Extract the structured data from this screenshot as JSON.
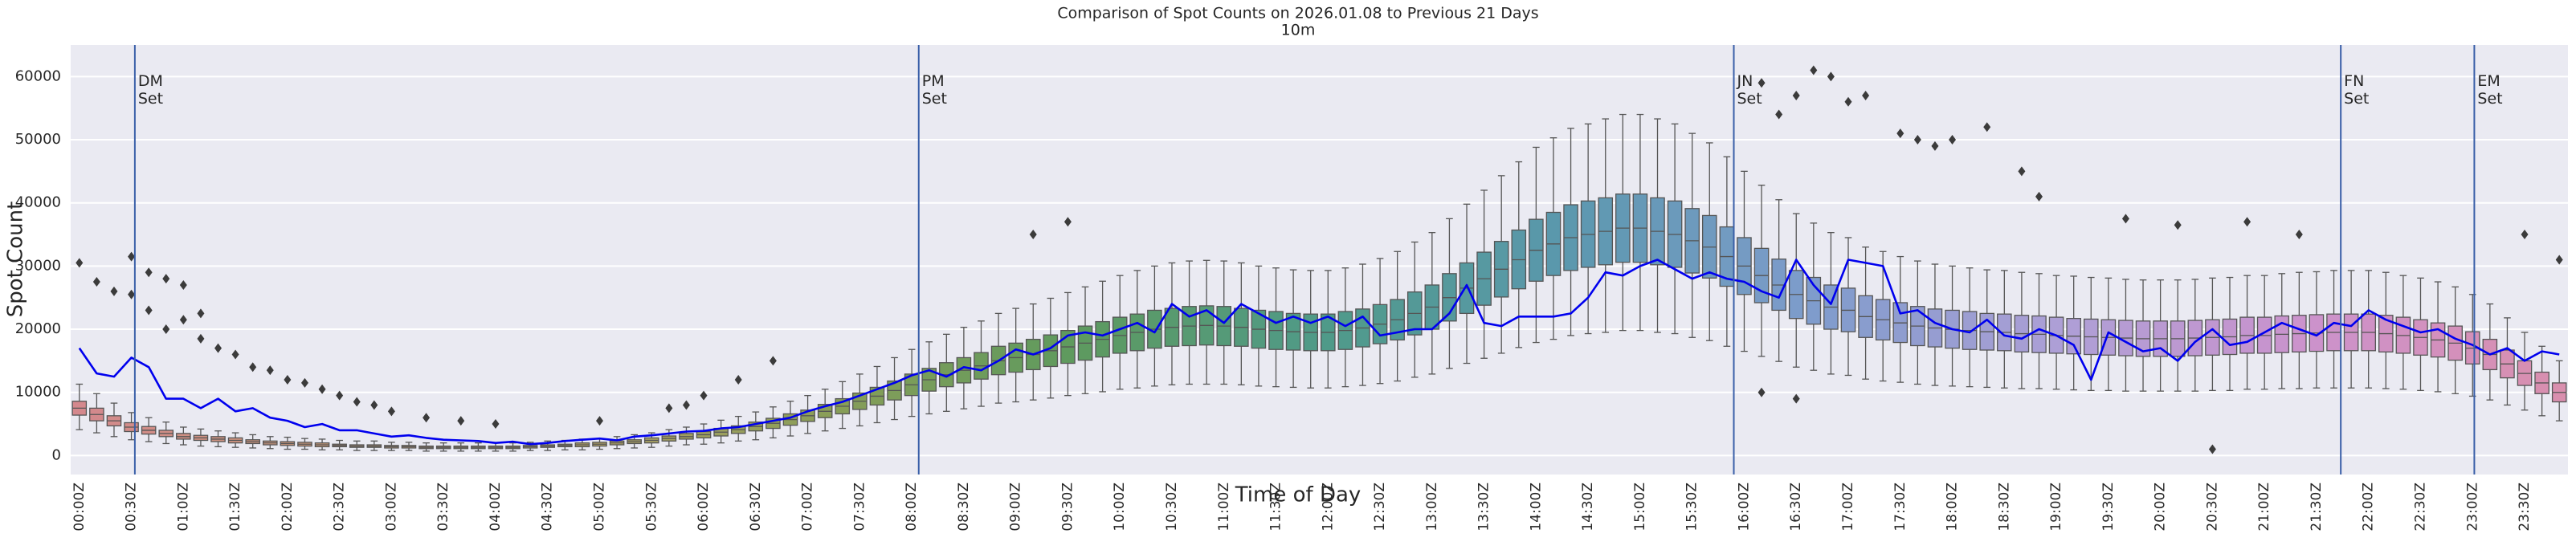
{
  "chart_data": {
    "type": "box",
    "title": "Comparison of Spot Counts on 2026.01.08 to Previous 21 Days",
    "subtitle": "10m",
    "x_label": "Time of Day",
    "y_label": "Spot Count",
    "categories": [
      "00:00Z",
      null,
      null,
      "00:30Z",
      null,
      null,
      "01:00Z",
      null,
      null,
      "01:30Z",
      null,
      null,
      "02:00Z",
      null,
      null,
      "02:30Z",
      null,
      null,
      "03:00Z",
      null,
      null,
      "03:30Z",
      null,
      null,
      "04:00Z",
      null,
      null,
      "04:30Z",
      null,
      null,
      "05:00Z",
      null,
      null,
      "05:30Z",
      null,
      null,
      "06:00Z",
      null,
      null,
      "06:30Z",
      null,
      null,
      "07:00Z",
      null,
      null,
      "07:30Z",
      null,
      null,
      "08:00Z",
      null,
      null,
      "08:30Z",
      null,
      null,
      "09:00Z",
      null,
      null,
      "09:30Z",
      null,
      null,
      "10:00Z",
      null,
      null,
      "10:30Z",
      null,
      null,
      "11:00Z",
      null,
      null,
      "11:30Z",
      null,
      null,
      "12:00Z",
      null,
      null,
      "12:30Z",
      null,
      null,
      "13:00Z",
      null,
      null,
      "13:30Z",
      null,
      null,
      "14:00Z",
      null,
      null,
      "14:30Z",
      null,
      null,
      "15:00Z",
      null,
      null,
      "15:30Z",
      null,
      null,
      "16:00Z",
      null,
      null,
      "16:30Z",
      null,
      null,
      "17:00Z",
      null,
      null,
      "17:30Z",
      null,
      null,
      "18:00Z",
      null,
      null,
      "18:30Z",
      null,
      null,
      "19:00Z",
      null,
      null,
      "19:30Z",
      null,
      null,
      "20:00Z",
      null,
      null,
      "20:30Z",
      null,
      null,
      "21:00Z",
      null,
      null,
      "21:30Z",
      null,
      null,
      "22:00Z",
      null,
      null,
      "22:30Z",
      null,
      null,
      "23:00Z",
      null,
      null,
      "23:30Z",
      null,
      null
    ],
    "boxes": {
      "whislo": [
        4100,
        3600,
        3000,
        2500,
        2200,
        1900,
        1700,
        1500,
        1400,
        1300,
        1200,
        1100,
        1000,
        1000,
        900,
        900,
        800,
        800,
        800,
        800,
        700,
        700,
        700,
        700,
        700,
        700,
        800,
        800,
        900,
        900,
        1000,
        1100,
        1200,
        1300,
        1500,
        1700,
        1800,
        2000,
        2300,
        2500,
        2800,
        3100,
        3500,
        3900,
        4300,
        4700,
        5200,
        5700,
        6200,
        6600,
        7000,
        7400,
        7800,
        8300,
        8500,
        8800,
        9100,
        9500,
        9800,
        10100,
        10500,
        10700,
        11000,
        11200,
        11300,
        11300,
        11300,
        11200,
        11000,
        10900,
        10800,
        10700,
        10700,
        10900,
        11100,
        11400,
        11800,
        12400,
        12900,
        13800,
        14600,
        15400,
        16200,
        17100,
        17900,
        18400,
        19000,
        19300,
        19500,
        19800,
        19800,
        19500,
        19300,
        18700,
        18200,
        17300,
        16500,
        15700,
        14900,
        14000,
        13500,
        12900,
        12700,
        12100,
        11800,
        11600,
        11300,
        11100,
        11000,
        10900,
        10800,
        10700,
        10600,
        10600,
        10500,
        10400,
        10300,
        10300,
        10200,
        10200,
        10200,
        10200,
        10200,
        10300,
        10300,
        10500,
        10500,
        10600,
        10600,
        10700,
        10700,
        10700,
        10700,
        10600,
        10500,
        10300,
        10100,
        9800,
        9400,
        8800,
        8000,
        7200,
        6300,
        5500
      ],
      "q1": [
        6400,
        5500,
        4700,
        3800,
        3400,
        3000,
        2600,
        2400,
        2200,
        2000,
        1900,
        1700,
        1600,
        1500,
        1400,
        1400,
        1300,
        1300,
        1200,
        1200,
        1100,
        1100,
        1100,
        1100,
        1100,
        1100,
        1200,
        1300,
        1400,
        1400,
        1500,
        1700,
        1900,
        2000,
        2300,
        2600,
        2800,
        3100,
        3500,
        3900,
        4300,
        4800,
        5400,
        6000,
        6600,
        7300,
        8000,
        8800,
        9500,
        10200,
        10900,
        11500,
        12100,
        12800,
        13200,
        13600,
        14100,
        14600,
        15100,
        15600,
        16200,
        16600,
        17000,
        17300,
        17400,
        17500,
        17400,
        17300,
        17000,
        16800,
        16700,
        16600,
        16600,
        16800,
        17200,
        17700,
        18300,
        19100,
        20000,
        21300,
        22500,
        23800,
        25100,
        26400,
        27600,
        28500,
        29300,
        29800,
        30200,
        30600,
        30600,
        30200,
        29800,
        28900,
        28100,
        26800,
        25500,
        24200,
        23000,
        21700,
        20800,
        20000,
        19600,
        18700,
        18300,
        17900,
        17400,
        17200,
        17000,
        16800,
        16700,
        16600,
        16400,
        16300,
        16200,
        16100,
        16000,
        15900,
        15800,
        15700,
        15700,
        15700,
        15800,
        15900,
        16000,
        16200,
        16200,
        16300,
        16400,
        16500,
        16600,
        16600,
        16600,
        16400,
        16200,
        15900,
        15600,
        15100,
        14500,
        13600,
        12300,
        11100,
        9800,
        8500
      ],
      "median": [
        7500,
        6500,
        5500,
        4500,
        4000,
        3500,
        3000,
        2800,
        2600,
        2400,
        2200,
        2000,
        1900,
        1800,
        1700,
        1600,
        1500,
        1500,
        1400,
        1400,
        1300,
        1300,
        1300,
        1300,
        1300,
        1300,
        1400,
        1500,
        1600,
        1700,
        1800,
        2000,
        2200,
        2400,
        2700,
        3000,
        3300,
        3700,
        4100,
        4600,
        5100,
        5700,
        6300,
        7000,
        7800,
        8600,
        9400,
        10300,
        11200,
        12000,
        12800,
        13500,
        14200,
        15000,
        15500,
        16000,
        16600,
        17200,
        17800,
        18400,
        19000,
        19500,
        20000,
        20300,
        20500,
        20600,
        20500,
        20300,
        20000,
        19800,
        19600,
        19500,
        19500,
        19800,
        20200,
        20800,
        21500,
        22500,
        23500,
        25000,
        26500,
        28000,
        29500,
        31000,
        32500,
        33500,
        34500,
        35000,
        35500,
        36000,
        36000,
        35500,
        35000,
        34000,
        33000,
        31500,
        30000,
        28500,
        27000,
        25500,
        24500,
        23500,
        23000,
        22000,
        21500,
        21000,
        20500,
        20200,
        20000,
        19800,
        19600,
        19500,
        19300,
        19200,
        19000,
        18900,
        18800,
        18700,
        18600,
        18500,
        18500,
        18500,
        18600,
        18700,
        18800,
        19000,
        19000,
        19200,
        19300,
        19400,
        19500,
        19500,
        19500,
        19300,
        19000,
        18700,
        18300,
        17800,
        17000,
        16000,
        14500,
        13000,
        11500,
        10000
      ],
      "q3": [
        8600,
        7500,
        6300,
        5200,
        4600,
        4000,
        3500,
        3200,
        3000,
        2800,
        2500,
        2300,
        2200,
        2100,
        2000,
        1800,
        1700,
        1700,
        1600,
        1600,
        1500,
        1500,
        1500,
        1500,
        1500,
        1500,
        1600,
        1700,
        1800,
        2000,
        2100,
        2300,
        2500,
        2800,
        3100,
        3500,
        3800,
        4300,
        4700,
        5300,
        5900,
        6600,
        7200,
        8100,
        9000,
        9900,
        10800,
        11800,
        12900,
        13800,
        14700,
        15500,
        16300,
        17300,
        17800,
        18400,
        19100,
        19800,
        20500,
        21200,
        21900,
        22400,
        23000,
        23300,
        23600,
        23700,
        23600,
        23300,
        23000,
        22800,
        22500,
        22400,
        22400,
        22800,
        23200,
        23900,
        24700,
        25900,
        27000,
        28800,
        30500,
        32200,
        33900,
        35700,
        37400,
        38500,
        39700,
        40300,
        40800,
        41400,
        41400,
        40800,
        40300,
        39100,
        38000,
        36200,
        34500,
        32800,
        31100,
        29300,
        28200,
        27000,
        26500,
        25300,
        24700,
        24200,
        23600,
        23200,
        23000,
        22800,
        22500,
        22400,
        22200,
        22100,
        21900,
        21700,
        21600,
        21500,
        21400,
        21300,
        21300,
        21300,
        21400,
        21500,
        21600,
        21900,
        21900,
        22100,
        22200,
        22300,
        22400,
        22400,
        22400,
        22200,
        21900,
        21500,
        21000,
        20500,
        19600,
        18400,
        16700,
        15000,
        13200,
        11500
      ],
      "whishi": [
        11300,
        9800,
        8300,
        6800,
        6000,
        5300,
        4500,
        4200,
        3900,
        3600,
        3300,
        3000,
        2900,
        2700,
        2600,
        2400,
        2300,
        2300,
        2100,
        2100,
        2000,
        2000,
        2000,
        2000,
        2000,
        2000,
        2100,
        2300,
        2400,
        2600,
        2700,
        3000,
        3300,
        3600,
        4100,
        4500,
        5000,
        5600,
        6200,
        6900,
        7700,
        8600,
        9500,
        10500,
        11700,
        12900,
        14100,
        15500,
        16800,
        18000,
        19200,
        20300,
        21300,
        22500,
        23300,
        24000,
        24900,
        25800,
        26700,
        27600,
        28500,
        29300,
        30000,
        30500,
        30800,
        30900,
        30800,
        30500,
        30000,
        29700,
        29400,
        29300,
        29300,
        29700,
        30300,
        31200,
        32300,
        33800,
        35300,
        37500,
        39800,
        42000,
        44300,
        46500,
        48800,
        50300,
        51800,
        52500,
        53300,
        54000,
        54000,
        53300,
        52500,
        51000,
        49500,
        47300,
        45000,
        42800,
        40500,
        38300,
        36800,
        35300,
        34500,
        33000,
        32300,
        31500,
        30800,
        30300,
        30000,
        29700,
        29400,
        29300,
        29000,
        28800,
        28500,
        28400,
        28200,
        28100,
        27900,
        27800,
        27800,
        27800,
        27900,
        28100,
        28200,
        28500,
        28500,
        28800,
        29000,
        29100,
        29300,
        29300,
        29300,
        29000,
        28500,
        28100,
        27500,
        26700,
        25500,
        24000,
        21800,
        19500,
        17300,
        15000
      ]
    },
    "palette": [
      "#d4888d",
      "#c99a78",
      "#b3a066",
      "#8a9e58",
      "#5e9a5e",
      "#4f9a88",
      "#5b98ae",
      "#7f9ccc",
      "#ae9fd6",
      "#cc92cc",
      "#d98fae"
    ],
    "box_edge_color": "#555555",
    "line": {
      "color": "#0000ee",
      "values": [
        17000,
        13000,
        12500,
        15500,
        14000,
        9000,
        9000,
        7500,
        9000,
        7000,
        7500,
        6000,
        5500,
        4500,
        5000,
        4000,
        4000,
        3500,
        3000,
        3200,
        2800,
        2500,
        2400,
        2300,
        2000,
        2200,
        1800,
        2000,
        2300,
        2500,
        2700,
        2400,
        3000,
        3200,
        3500,
        3800,
        3900,
        4300,
        4500,
        5000,
        5500,
        6000,
        7000,
        7800,
        8500,
        9500,
        10500,
        11500,
        12700,
        13500,
        12500,
        14000,
        13500,
        15000,
        16800,
        16000,
        17000,
        19000,
        19500,
        19000,
        20000,
        21000,
        19500,
        24000,
        22000,
        23000,
        21000,
        24000,
        22500,
        21000,
        22000,
        21000,
        22000,
        20500,
        22000,
        19000,
        19500,
        20000,
        20000,
        22500,
        27000,
        21000,
        20500,
        22000,
        22000,
        22000,
        22500,
        25000,
        29000,
        28500,
        30000,
        31000,
        29500,
        28000,
        29000,
        28000,
        27500,
        26000,
        25000,
        31000,
        27000,
        24000,
        31000,
        30500,
        30000,
        22500,
        23000,
        21000,
        20000,
        19500,
        21500,
        19000,
        18500,
        20000,
        19000,
        17500,
        12000,
        19500,
        18000,
        16500,
        17000,
        15000,
        18000,
        20000,
        17500,
        18000,
        19500,
        21000,
        20000,
        19000,
        21000,
        20500,
        23000,
        21500,
        20500,
        19500,
        20000,
        18500,
        17500,
        16000,
        17000,
        15000,
        16500,
        16000
      ]
    },
    "outliers": {
      "color": "#3b3b3b",
      "x": [
        0,
        1,
        2,
        3,
        3,
        4,
        4,
        5,
        5,
        6,
        6,
        7,
        7,
        8,
        9,
        10,
        11,
        12,
        13,
        14,
        15,
        16,
        17,
        18,
        20,
        22,
        24,
        30,
        34,
        35,
        36,
        38,
        40,
        55,
        57,
        97,
        97,
        98,
        99,
        99,
        100,
        101,
        102,
        103,
        105,
        106,
        107,
        108,
        110,
        112,
        113,
        118,
        121,
        123,
        125,
        128,
        141,
        143
      ],
      "values": [
        30500,
        27500,
        26000,
        31500,
        25500,
        29000,
        23000,
        28000,
        20000,
        27000,
        21500,
        22500,
        18500,
        17000,
        16000,
        14000,
        13500,
        12000,
        11500,
        10500,
        9500,
        8500,
        8000,
        7000,
        6000,
        5500,
        5000,
        5500,
        7500,
        8000,
        9500,
        12000,
        15000,
        35000,
        37000,
        59000,
        10000,
        54000,
        57000,
        9000,
        61000,
        60000,
        56000,
        57000,
        51000,
        50000,
        49000,
        50000,
        52000,
        45000,
        41000,
        37500,
        36500,
        1000,
        37000,
        35000,
        35000,
        31000
      ]
    },
    "vlines": [
      {
        "x": 3.2,
        "label": "DM\nSet"
      },
      {
        "x": 48.4,
        "label": "PM\nSet"
      },
      {
        "x": 95.4,
        "label": "JN\nSet"
      },
      {
        "x": 130.4,
        "label": "FN\nSet"
      },
      {
        "x": 138.1,
        "label": "EM\nSet"
      }
    ],
    "vline_color": "#3a5fa8",
    "ylim": [
      -3000,
      65000
    ],
    "yticks": [
      0,
      10000,
      20000,
      30000,
      40000,
      50000,
      60000
    ],
    "grid": true
  }
}
